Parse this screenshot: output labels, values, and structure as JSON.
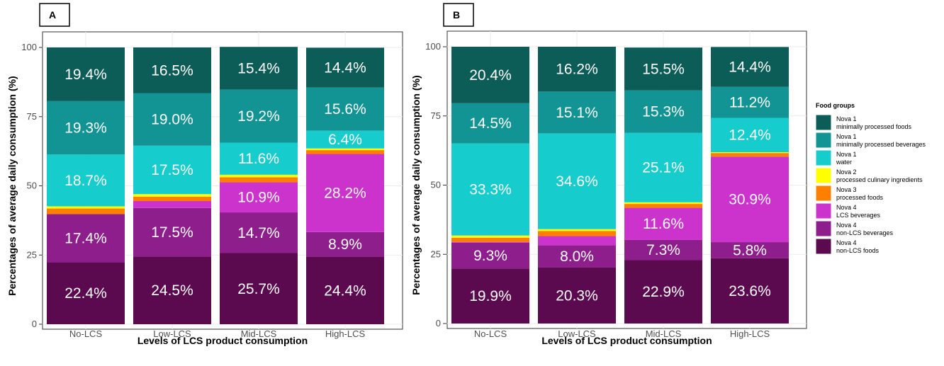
{
  "chart_data": [
    {
      "type": "bar",
      "stacked": true,
      "panel_label": "A",
      "xlabel": "Levels of LCS product consumption",
      "ylabel": "Percentages of average daily consumption (%)",
      "ylim": [
        0,
        100
      ],
      "yticks": [
        "0",
        "25",
        "50",
        "75",
        "100"
      ],
      "grid": true,
      "categories": [
        "No-LCS",
        "Low-LCS",
        "Mid-LCS",
        "High-LCS"
      ],
      "series": [
        {
          "name": "Nova 4 non-LCS foods",
          "color": "#5c0a4f",
          "values": [
            22.4,
            24.5,
            25.7,
            24.4
          ],
          "labels": [
            "22.4%",
            "24.5%",
            "25.7%",
            "24.4%"
          ]
        },
        {
          "name": "Nova 4 non-LCS beverages",
          "color": "#8e1e8c",
          "values": [
            17.4,
            17.5,
            14.7,
            8.9
          ],
          "labels": [
            "17.4%",
            "17.5%",
            "14.7%",
            "8.9%"
          ]
        },
        {
          "name": "Nova 4 LCS beverages",
          "color": "#cc33cc",
          "values": [
            0.0,
            2.5,
            10.9,
            28.2
          ],
          "labels": [
            "",
            "",
            "10.9%",
            "28.2%"
          ]
        },
        {
          "name": "Nova 3 processed foods",
          "color": "#ff7f00",
          "values": [
            2.0,
            1.6,
            1.8,
            1.4
          ],
          "labels": [
            "",
            "",
            "",
            ""
          ]
        },
        {
          "name": "Nova 2 processed culinary ingredients",
          "color": "#ffff00",
          "values": [
            0.8,
            0.9,
            0.9,
            0.6
          ],
          "labels": [
            "",
            "",
            "",
            ""
          ]
        },
        {
          "name": "Nova 1 water",
          "color": "#17cccc",
          "values": [
            18.7,
            17.5,
            11.6,
            6.4
          ],
          "labels": [
            "18.7%",
            "17.5%",
            "11.6%",
            "6.4%"
          ]
        },
        {
          "name": "Nova 1 minimally processed beverages",
          "color": "#129494",
          "values": [
            19.3,
            19.0,
            19.2,
            15.6
          ],
          "labels": [
            "19.3%",
            "19.0%",
            "19.2%",
            "15.6%"
          ]
        },
        {
          "name": "Nova 1 minimally processed foods",
          "color": "#0c5c58",
          "values": [
            19.4,
            16.5,
            15.4,
            14.4
          ],
          "labels": [
            "19.4%",
            "16.5%",
            "15.4%",
            "14.4%"
          ]
        }
      ]
    },
    {
      "type": "bar",
      "stacked": true,
      "panel_label": "B",
      "xlabel": "Levels of LCS product consumption",
      "ylabel": "Percentages of average daily consumption (%)",
      "ylim": [
        0,
        100
      ],
      "yticks": [
        "0",
        "25",
        "50",
        "75",
        "100"
      ],
      "grid": true,
      "categories": [
        "No-LCS",
        "Low-LCS",
        "Mid-LCS",
        "High-LCS"
      ],
      "series": [
        {
          "name": "Nova 4 non-LCS foods",
          "color": "#5c0a4f",
          "values": [
            19.9,
            20.3,
            22.9,
            23.6
          ],
          "labels": [
            "19.9%",
            "20.3%",
            "22.9%",
            "23.6%"
          ]
        },
        {
          "name": "Nova 4 non-LCS beverages",
          "color": "#8e1e8c",
          "values": [
            9.3,
            8.0,
            7.3,
            5.8
          ],
          "labels": [
            "9.3%",
            "8.0%",
            "7.3%",
            "5.8%"
          ]
        },
        {
          "name": "Nova 4 LCS beverages",
          "color": "#cc33cc",
          "values": [
            0.3,
            3.3,
            11.6,
            30.9
          ],
          "labels": [
            "",
            "",
            "11.6%",
            "30.9%"
          ]
        },
        {
          "name": "Nova 3 processed foods",
          "color": "#ff7f00",
          "values": [
            1.5,
            1.8,
            1.4,
            1.3
          ],
          "labels": [
            "",
            "",
            "",
            ""
          ]
        },
        {
          "name": "Nova 2 processed culinary ingredients",
          "color": "#ffff00",
          "values": [
            0.8,
            0.7,
            0.6,
            0.3
          ],
          "labels": [
            "",
            "",
            "",
            ""
          ]
        },
        {
          "name": "Nova 1 water",
          "color": "#17cccc",
          "values": [
            33.3,
            34.6,
            25.1,
            12.4
          ],
          "labels": [
            "33.3%",
            "34.6%",
            "25.1%",
            "12.4%"
          ]
        },
        {
          "name": "Nova 1 minimally processed beverages",
          "color": "#129494",
          "values": [
            14.5,
            15.1,
            15.3,
            11.2
          ],
          "labels": [
            "14.5%",
            "15.1%",
            "15.3%",
            "11.2%"
          ]
        },
        {
          "name": "Nova 1 minimally processed foods",
          "color": "#0c5c58",
          "values": [
            20.4,
            16.2,
            15.5,
            14.4
          ],
          "labels": [
            "20.4%",
            "16.2%",
            "15.5%",
            "14.4%"
          ]
        }
      ]
    }
  ],
  "legend": {
    "title": "Food groups",
    "placement": "right",
    "items": [
      {
        "line1": "Nova 1",
        "line2": "minimally processed foods",
        "color": "#0c5c58"
      },
      {
        "line1": "Nova 1",
        "line2": "minimally processed beverages",
        "color": "#129494"
      },
      {
        "line1": "Nova 1",
        "line2": "water",
        "color": "#17cccc"
      },
      {
        "line1": "Nova 2",
        "line2": "processed culinary ingredients",
        "color": "#ffff00"
      },
      {
        "line1": "Nova 3",
        "line2": "processed foods",
        "color": "#ff7f00"
      },
      {
        "line1": "Nova 4",
        "line2": "LCS beverages",
        "color": "#cc33cc"
      },
      {
        "line1": "Nova 4",
        "line2": "non-LCS beverages",
        "color": "#8e1e8c"
      },
      {
        "line1": "Nova 4",
        "line2": "non-LCS foods",
        "color": "#5c0a4f"
      }
    ]
  }
}
